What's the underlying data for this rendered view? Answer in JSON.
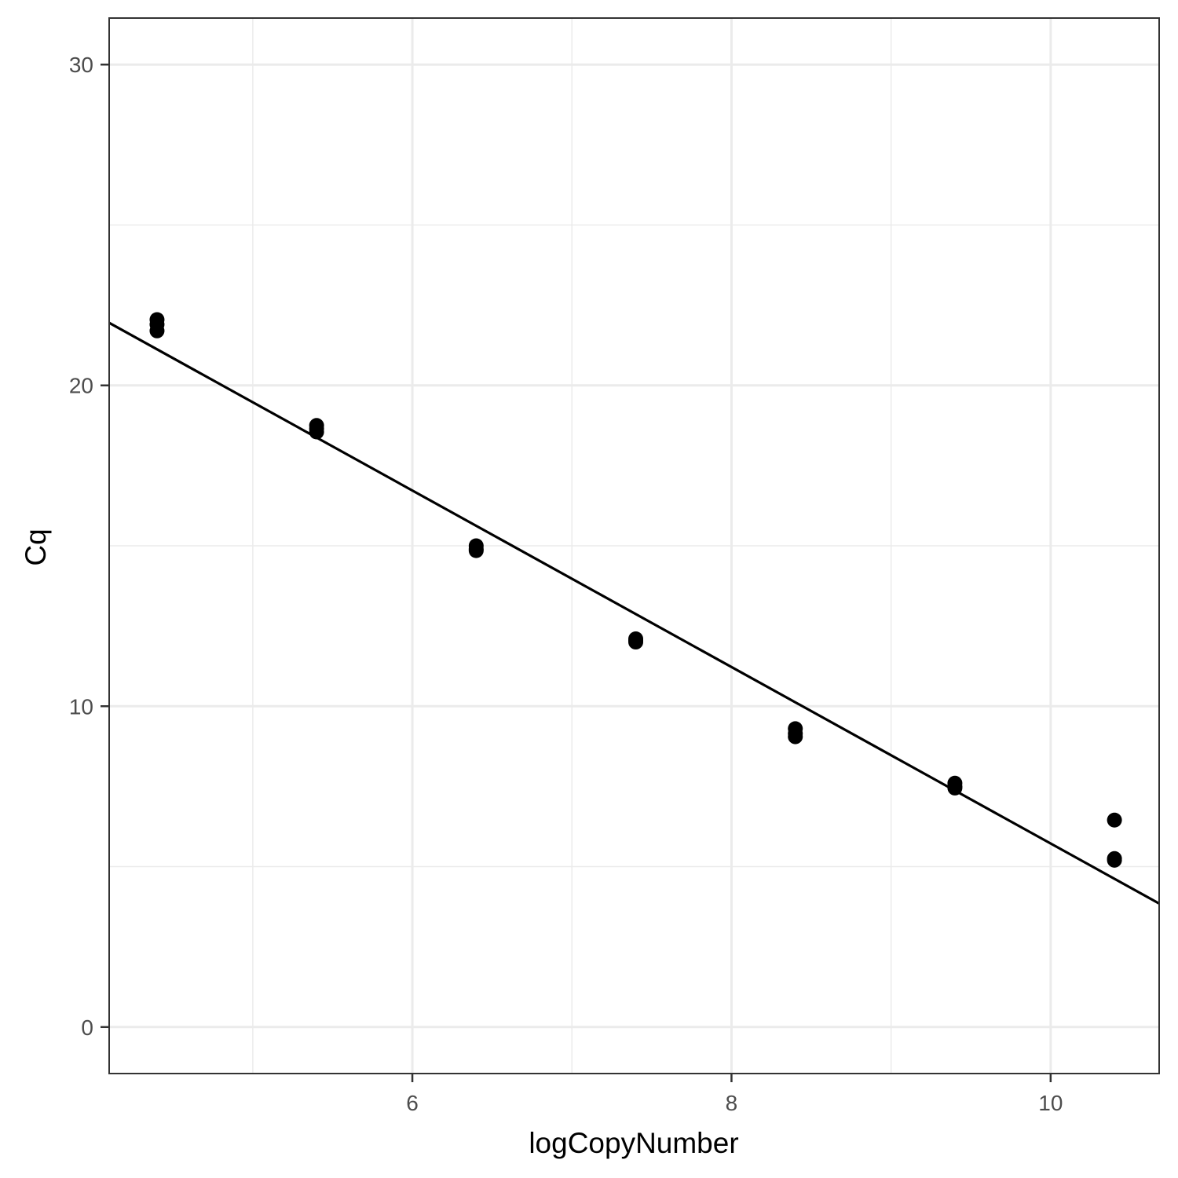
{
  "chart_data": {
    "type": "scatter",
    "title": "",
    "xlabel": "logCopyNumber",
    "ylabel": "Cq",
    "xlim": [
      4.1,
      10.68
    ],
    "ylim": [
      -1.45,
      31.45
    ],
    "x_ticks": [
      6,
      8,
      10
    ],
    "x_tick_labels": [
      "6",
      "8",
      "10"
    ],
    "x_minor_ticks": [
      5,
      7,
      9
    ],
    "y_ticks": [
      0,
      10,
      20,
      30
    ],
    "y_tick_labels": [
      "0",
      "10",
      "20",
      "30"
    ],
    "y_minor_ticks": [
      5,
      15,
      25
    ],
    "grid": true,
    "legend": "none",
    "colors": {
      "points": "#000000",
      "line": "#000000",
      "grid": "#ebebeb",
      "panel_border": "#333333"
    },
    "points": [
      {
        "x": 4.4,
        "y": 22.05
      },
      {
        "x": 4.4,
        "y": 21.9
      },
      {
        "x": 4.4,
        "y": 21.7
      },
      {
        "x": 5.4,
        "y": 18.75
      },
      {
        "x": 5.4,
        "y": 18.65
      },
      {
        "x": 5.4,
        "y": 18.55
      },
      {
        "x": 6.4,
        "y": 15.0
      },
      {
        "x": 6.4,
        "y": 14.9
      },
      {
        "x": 6.4,
        "y": 14.85
      },
      {
        "x": 7.4,
        "y": 12.1
      },
      {
        "x": 7.4,
        "y": 12.0
      },
      {
        "x": 7.4,
        "y": 12.05
      },
      {
        "x": 8.4,
        "y": 9.3
      },
      {
        "x": 8.4,
        "y": 9.15
      },
      {
        "x": 8.4,
        "y": 9.05
      },
      {
        "x": 9.4,
        "y": 7.6
      },
      {
        "x": 9.4,
        "y": 7.5
      },
      {
        "x": 9.4,
        "y": 7.45
      },
      {
        "x": 10.4,
        "y": 6.45
      },
      {
        "x": 10.4,
        "y": 5.25
      },
      {
        "x": 10.4,
        "y": 5.2
      }
    ],
    "fit_line": {
      "x": [
        4.1,
        10.68
      ],
      "y": [
        21.95,
        3.85
      ]
    }
  }
}
